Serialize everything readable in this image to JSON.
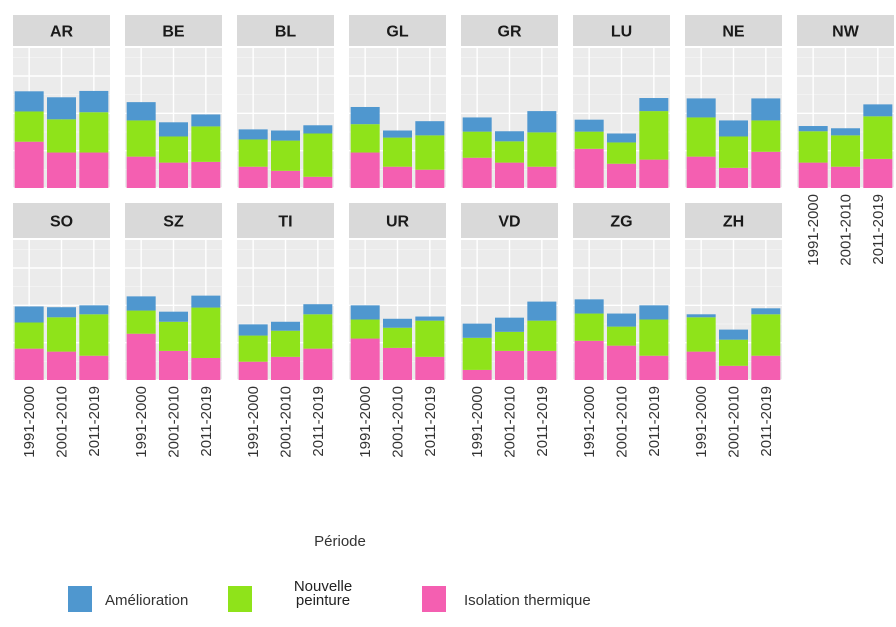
{
  "chart_data": {
    "type": "bar",
    "stacked": true,
    "x_label": "Période",
    "categories": [
      "1991-2000",
      "2001-2010",
      "2011-2019"
    ],
    "series": [
      {
        "name": "Amélioration",
        "color": "#4f97cf"
      },
      {
        "name": "Nouvelle peinture",
        "color": "#8fe31a"
      },
      {
        "name": "Isolation thermique",
        "color": "#f45fb1"
      }
    ],
    "ylim": [
      0,
      3.75
    ],
    "yticks": [
      0,
      1,
      2,
      3
    ],
    "grid": true,
    "panels": [
      {
        "name": "AR",
        "values": [
          [
            0.54,
            0.59,
            0.57
          ],
          [
            0.81,
            0.89,
            1.08
          ],
          [
            1.24,
            0.95,
            0.95
          ]
        ]
      },
      {
        "name": "BE",
        "values": [
          [
            0.49,
            0.38,
            0.32
          ],
          [
            0.97,
            0.7,
            0.95
          ],
          [
            0.84,
            0.68,
            0.7
          ]
        ]
      },
      {
        "name": "BL",
        "values": [
          [
            0.27,
            0.27,
            0.22
          ],
          [
            0.73,
            0.81,
            1.16
          ],
          [
            0.57,
            0.46,
            0.3
          ]
        ]
      },
      {
        "name": "GL",
        "values": [
          [
            0.46,
            0.19,
            0.38
          ],
          [
            0.76,
            0.78,
            0.92
          ],
          [
            0.95,
            0.57,
            0.49
          ]
        ]
      },
      {
        "name": "GR",
        "values": [
          [
            0.38,
            0.27,
            0.57
          ],
          [
            0.7,
            0.57,
            0.92
          ],
          [
            0.81,
            0.68,
            0.57
          ]
        ]
      },
      {
        "name": "LU",
        "values": [
          [
            0.32,
            0.24,
            0.35
          ],
          [
            0.46,
            0.57,
            1.3
          ],
          [
            1.05,
            0.65,
            0.76
          ]
        ]
      },
      {
        "name": "NE",
        "values": [
          [
            0.51,
            0.43,
            0.59
          ],
          [
            1.05,
            0.84,
            0.84
          ],
          [
            0.84,
            0.54,
            0.97
          ]
        ]
      },
      {
        "name": "NW",
        "values": [
          [
            0.14,
            0.19,
            0.32
          ],
          [
            0.84,
            0.84,
            1.14
          ],
          [
            0.68,
            0.57,
            0.78
          ]
        ]
      },
      {
        "name": "SO",
        "values": [
          [
            0.43,
            0.27,
            0.24
          ],
          [
            0.7,
            0.92,
            1.11
          ],
          [
            0.84,
            0.76,
            0.65
          ]
        ]
      },
      {
        "name": "SZ",
        "values": [
          [
            0.38,
            0.27,
            0.32
          ],
          [
            0.62,
            0.78,
            1.35
          ],
          [
            1.24,
            0.78,
            0.59
          ]
        ]
      },
      {
        "name": "TI",
        "values": [
          [
            0.3,
            0.24,
            0.27
          ],
          [
            0.7,
            0.7,
            0.92
          ],
          [
            0.49,
            0.62,
            0.84
          ]
        ]
      },
      {
        "name": "UR",
        "values": [
          [
            0.38,
            0.24,
            0.11
          ],
          [
            0.51,
            0.54,
            0.97
          ],
          [
            1.11,
            0.86,
            0.62
          ]
        ]
      },
      {
        "name": "VD",
        "values": [
          [
            0.38,
            0.38,
            0.51
          ],
          [
            0.86,
            0.51,
            0.81
          ],
          [
            0.27,
            0.78,
            0.78
          ]
        ]
      },
      {
        "name": "ZG",
        "values": [
          [
            0.38,
            0.35,
            0.38
          ],
          [
            0.73,
            0.51,
            0.97
          ],
          [
            1.05,
            0.92,
            0.65
          ]
        ]
      },
      {
        "name": "ZH",
        "values": [
          [
            0.08,
            0.27,
            0.16
          ],
          [
            0.92,
            0.7,
            1.11
          ],
          [
            0.76,
            0.38,
            0.65
          ]
        ]
      }
    ]
  }
}
